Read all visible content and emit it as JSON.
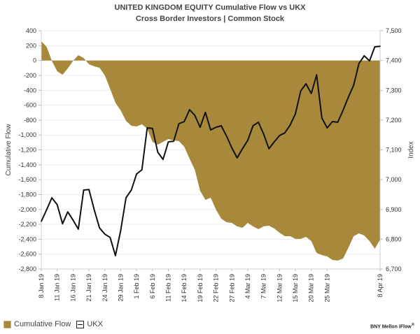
{
  "chart_data": {
    "type": "area+line",
    "title": "UNITED KINGDOM  EQUITY Cumulative Flow vs  UKX",
    "subtitle": "Cross Border Investors | Common Stock",
    "ylabel_left": "Cumulative Flow",
    "ylabel_right": "Index",
    "ylim_left": [
      -2800,
      400
    ],
    "ylim_right": [
      6700,
      7500
    ],
    "yticks_left": [
      "400",
      "200",
      "0",
      "-200",
      "-400",
      "-600",
      "-800",
      "-1,000",
      "-1,200",
      "-1,400",
      "-1,600",
      "-1,800",
      "-2,000",
      "-2,200",
      "-2,400",
      "-2,600",
      "-2,800"
    ],
    "yticks_right": [
      "7,500",
      "7,400",
      "7,300",
      "7,200",
      "7,100",
      "7,000",
      "6,900",
      "6,800",
      "6,700"
    ],
    "grid": true,
    "legend_position": "bottom-left",
    "x": [
      "8 Jan 19",
      "9 Jan 19",
      "10 Jan 19",
      "11 Jan 19",
      "14 Jan 19",
      "15 Jan 19",
      "16 Jan 19",
      "17 Jan 19",
      "18 Jan 19",
      "21 Jan 19",
      "22 Jan 19",
      "23 Jan 19",
      "24 Jan 19",
      "25 Jan 19",
      "28 Jan 19",
      "29 Jan 19",
      "30 Jan 19",
      "31 Jan 19",
      "1 Feb 19",
      "4 Feb 19",
      "5 Feb 19",
      "6 Feb 19",
      "7 Feb 19",
      "8 Feb 19",
      "11 Feb 19",
      "12 Feb 19",
      "13 Feb 19",
      "14 Feb 19",
      "15 Feb 19",
      "18 Feb 19",
      "19 Feb 19",
      "20 Feb 19",
      "21 Feb 19",
      "22 Feb 19",
      "25 Feb 19",
      "26 Feb 19",
      "27 Feb 19",
      "28 Feb 19",
      "1 Mar 19",
      "4 Mar 19",
      "5 Mar 19",
      "6 Mar 19",
      "7 Mar 19",
      "8 Mar 19",
      "11 Mar 19",
      "12 Mar 19",
      "13 Mar 19",
      "14 Mar 19",
      "15 Mar 19",
      "18 Mar 19",
      "19 Mar 19",
      "20 Mar 19",
      "21 Mar 19",
      "22 Mar 19",
      "25 Mar 19",
      "26 Mar 19",
      "27 Mar 19",
      "28 Mar 19",
      "29 Mar 19",
      "1 Apr 19",
      "2 Apr 19",
      "3 Apr 19",
      "4 Apr 19",
      "5 Apr 19",
      "8 Apr 19"
    ],
    "xtick_labels": [
      "8 Jan 19",
      "11 Jan 19",
      "16 Jan 19",
      "21 Jan 19",
      "24 Jan 19",
      "29 Jan 19",
      "1 Feb 19",
      "6 Feb 19",
      "11 Feb 19",
      "14 Feb 19",
      "19 Feb 19",
      "22 Feb 19",
      "27 Feb 19",
      "4 Mar 19",
      "7 Mar 19",
      "12 Mar 19",
      "15 Mar 19",
      "20 Mar 19",
      "25 Mar 19",
      "8 Apr 19"
    ],
    "series": [
      {
        "name": "Cumulative Flow",
        "type": "area",
        "axis": "left",
        "color": "#a8893c",
        "values": [
          259,
          184,
          -4,
          -144,
          -191,
          -107,
          -4,
          72,
          34,
          -50,
          -79,
          -97,
          -201,
          -379,
          -567,
          -670,
          -811,
          -876,
          -886,
          -857,
          -914,
          -1092,
          -1130,
          -1092,
          -1055,
          -1073,
          -1083,
          -1158,
          -1317,
          -1467,
          -1749,
          -1871,
          -1843,
          -2002,
          -2124,
          -2171,
          -2181,
          -2228,
          -2246,
          -2181,
          -2228,
          -2265,
          -2228,
          -2218,
          -2256,
          -2312,
          -2359,
          -2359,
          -2396,
          -2396,
          -2368,
          -2425,
          -2584,
          -2612,
          -2631,
          -2678,
          -2687,
          -2659,
          -2518,
          -2359,
          -2321,
          -2350,
          -2425,
          -2528,
          -2406
        ]
      },
      {
        "name": "UKX",
        "type": "line",
        "axis": "right",
        "color": "#111111",
        "values": [
          6860,
          6899,
          6939,
          6916,
          6852,
          6892,
          6864,
          6834,
          6965,
          6967,
          6899,
          6838,
          6817,
          6806,
          6745,
          6829,
          6939,
          6965,
          7019,
          7033,
          7174,
          7172,
          7092,
          7068,
          7127,
          7129,
          7188,
          7195,
          7235,
          7216,
          7176,
          7226,
          7167,
          7176,
          7181,
          7146,
          7106,
          7073,
          7104,
          7132,
          7181,
          7193,
          7153,
          7104,
          7127,
          7148,
          7157,
          7183,
          7221,
          7298,
          7322,
          7289,
          7352,
          7207,
          7174,
          7195,
          7193,
          7233,
          7277,
          7317,
          7390,
          7416,
          7399,
          7446,
          7448
        ]
      }
    ]
  },
  "legend": {
    "items": [
      "Cumulative Flow",
      "UKX"
    ]
  },
  "brand": "BNY Mellon iFlow"
}
